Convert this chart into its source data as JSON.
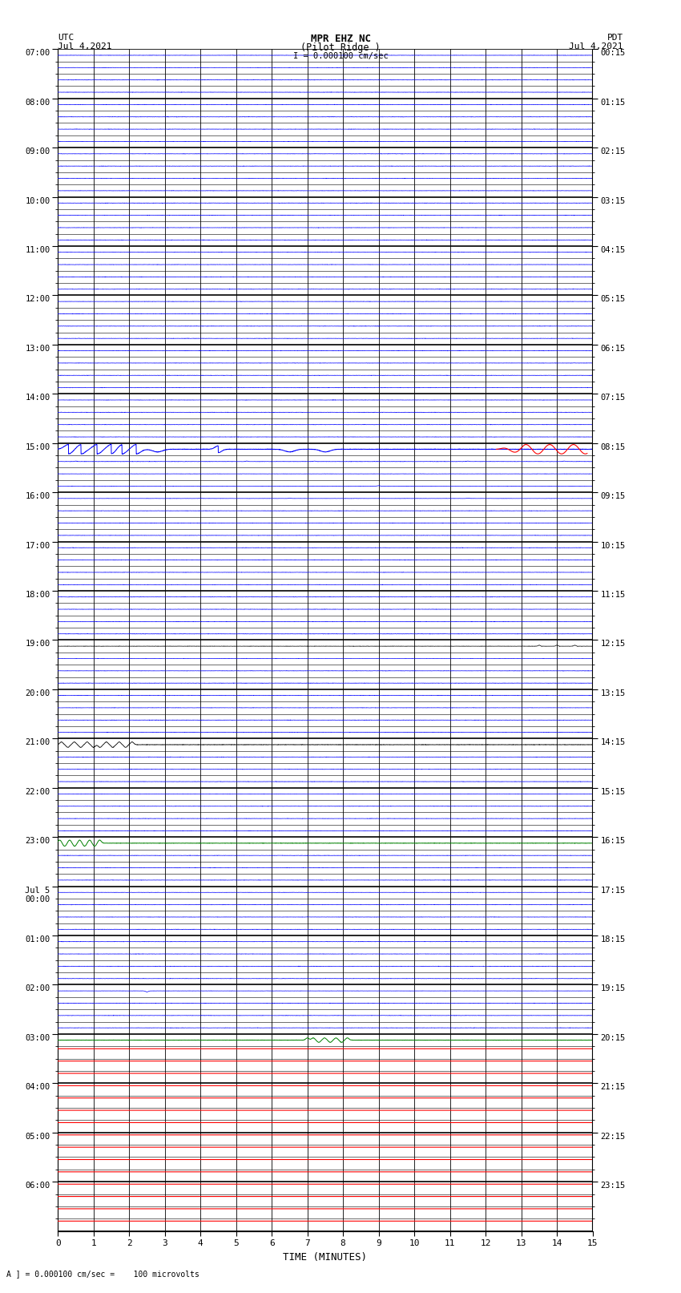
{
  "title_line1": "MPR EHZ NC",
  "title_line2": "(Pilot Ridge )",
  "title_scale": "I = 0.000100 cm/sec",
  "left_header_line1": "UTC",
  "left_header_line2": "Jul 4,2021",
  "right_header_line1": "PDT",
  "right_header_line2": "Jul 4,2021",
  "xlabel": "TIME (MINUTES)",
  "footer": "A ] = 0.000100 cm/sec =    100 microvolts",
  "utc_labels": [
    "07:00",
    "08:00",
    "09:00",
    "10:00",
    "11:00",
    "12:00",
    "13:00",
    "14:00",
    "15:00",
    "16:00",
    "17:00",
    "18:00",
    "19:00",
    "20:00",
    "21:00",
    "22:00",
    "23:00",
    "Jul 5\n00:00",
    "01:00",
    "02:00",
    "03:00",
    "04:00",
    "05:00",
    "06:00"
  ],
  "pdt_labels": [
    "00:15",
    "01:15",
    "02:15",
    "03:15",
    "04:15",
    "05:15",
    "06:15",
    "07:15",
    "08:15",
    "09:15",
    "10:15",
    "11:15",
    "12:15",
    "13:15",
    "14:15",
    "15:15",
    "16:15",
    "17:15",
    "18:15",
    "19:15",
    "20:15",
    "21:15",
    "22:15",
    "23:15"
  ],
  "n_hours": 24,
  "subrows_per_hour": 4,
  "n_minute_cols": 15,
  "background_color": "#ffffff",
  "major_grid_color": "#000000",
  "minor_grid_color": "#000000",
  "fig_width": 8.5,
  "fig_height": 16.13,
  "dpi": 100
}
